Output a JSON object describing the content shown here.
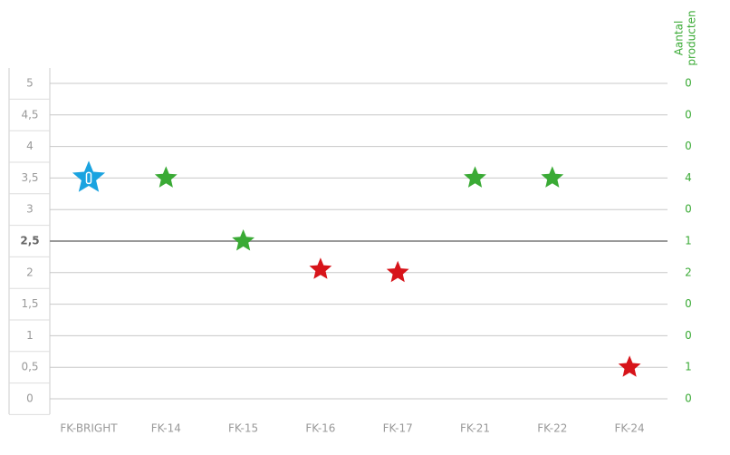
{
  "chart_data": {
    "type": "scatter",
    "categories": [
      "FK-BRIGHT",
      "FK-14",
      "FK-15",
      "FK-16",
      "FK-17",
      "FK-21",
      "FK-22",
      "FK-24"
    ],
    "values": [
      3.5,
      3.5,
      2.5,
      2.05,
      2,
      3.5,
      3.5,
      0.5
    ],
    "colors": [
      "#1aa3e0",
      "#3aaa35",
      "#3aaa35",
      "#d7141a",
      "#d7141a",
      "#3aaa35",
      "#3aaa35",
      "#d7141a"
    ],
    "ylim": [
      0,
      5
    ],
    "yticks": [
      0,
      {
        "value": 0.5,
        "label": "0,5"
      },
      1,
      {
        "value": 1.5,
        "label": "1,5"
      },
      2,
      {
        "value": 2.5,
        "label": "2,5"
      },
      3,
      {
        "value": 3.5,
        "label": "3,5"
      },
      4,
      {
        "value": 4.5,
        "label": "4,5"
      },
      5
    ],
    "reference_line": 2.5,
    "y2label_lines": [
      "Aantal",
      "producten"
    ],
    "row_counts": [
      0,
      1,
      0,
      0,
      2,
      1,
      0,
      4,
      0,
      0,
      0
    ],
    "grid": true
  }
}
